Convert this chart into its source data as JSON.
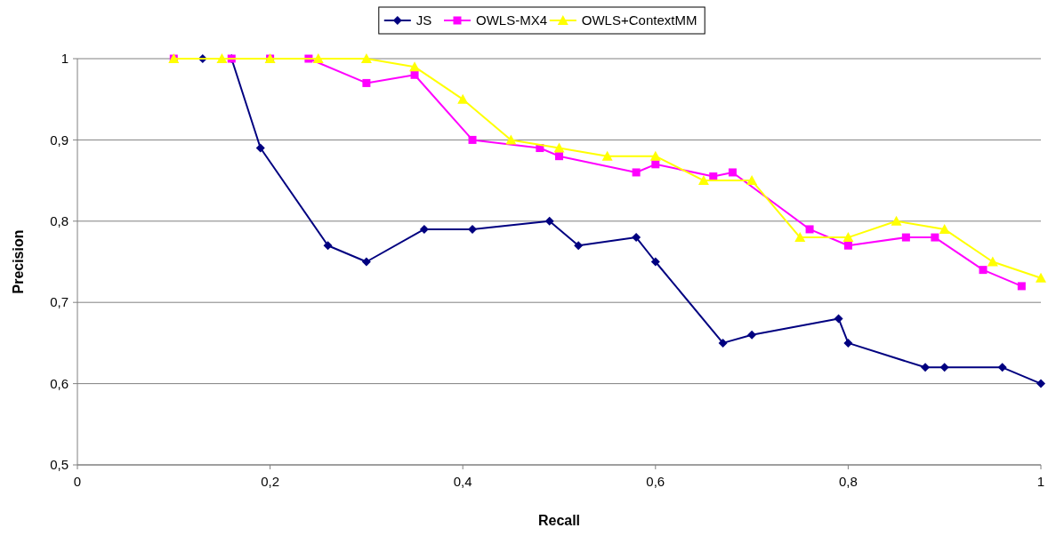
{
  "chart_data": {
    "type": "line",
    "xlabel": "Recall",
    "ylabel": "Precision",
    "xlim": [
      0,
      1
    ],
    "ylim": [
      0.5,
      1
    ],
    "xticks": [
      0,
      {
        "value": 0.2,
        "label": "0,2"
      },
      {
        "value": 0.4,
        "label": "0,4"
      },
      {
        "value": 0.6,
        "label": "0,6"
      },
      {
        "value": 0.8,
        "label": "0,8"
      },
      1
    ],
    "yticks": [
      {
        "value": 0.5,
        "label": "0,5"
      },
      {
        "value": 0.6,
        "label": "0,6"
      },
      {
        "value": 0.7,
        "label": "0,7"
      },
      {
        "value": 0.8,
        "label": "0,8"
      },
      {
        "value": 0.9,
        "label": "0,9"
      },
      1
    ],
    "grid": "y",
    "legend": "top",
    "line_style": "solid",
    "series": [
      {
        "name": "JS",
        "color": "#000080",
        "marker": "diamond",
        "x": [
          0.13,
          0.16,
          0.19,
          0.26,
          0.3,
          0.36,
          0.41,
          0.49,
          0.52,
          0.58,
          0.6,
          0.67,
          0.7,
          0.79,
          0.8,
          0.88,
          0.9,
          0.96,
          1.0
        ],
        "values": [
          1.0,
          1.0,
          0.89,
          0.77,
          0.75,
          0.79,
          0.79,
          0.8,
          0.77,
          0.78,
          0.75,
          0.65,
          0.66,
          0.68,
          0.65,
          0.62,
          0.62,
          0.62,
          0.6
        ]
      },
      {
        "name": "OWLS-MX4",
        "color": "#ff00ff",
        "marker": "square",
        "x": [
          0.1,
          0.16,
          0.2,
          0.24,
          0.3,
          0.35,
          0.41,
          0.48,
          0.5,
          0.58,
          0.6,
          0.66,
          0.68,
          0.76,
          0.8,
          0.86,
          0.89,
          0.94,
          0.98
        ],
        "values": [
          1.0,
          1.0,
          1.0,
          1.0,
          0.97,
          0.98,
          0.9,
          0.89,
          0.88,
          0.86,
          0.87,
          0.855,
          0.86,
          0.79,
          0.77,
          0.78,
          0.78,
          0.74,
          0.72
        ]
      },
      {
        "name": "OWLS+ContextMM",
        "color": "#ffff00",
        "marker": "triangle",
        "x": [
          0.1,
          0.15,
          0.2,
          0.25,
          0.3,
          0.35,
          0.4,
          0.45,
          0.5,
          0.55,
          0.6,
          0.65,
          0.7,
          0.75,
          0.8,
          0.85,
          0.9,
          0.95,
          1.0
        ],
        "values": [
          1.0,
          1.0,
          1.0,
          1.0,
          1.0,
          0.99,
          0.95,
          0.9,
          0.89,
          0.88,
          0.88,
          0.85,
          0.85,
          0.78,
          0.78,
          0.8,
          0.79,
          0.75,
          0.73
        ]
      }
    ]
  }
}
